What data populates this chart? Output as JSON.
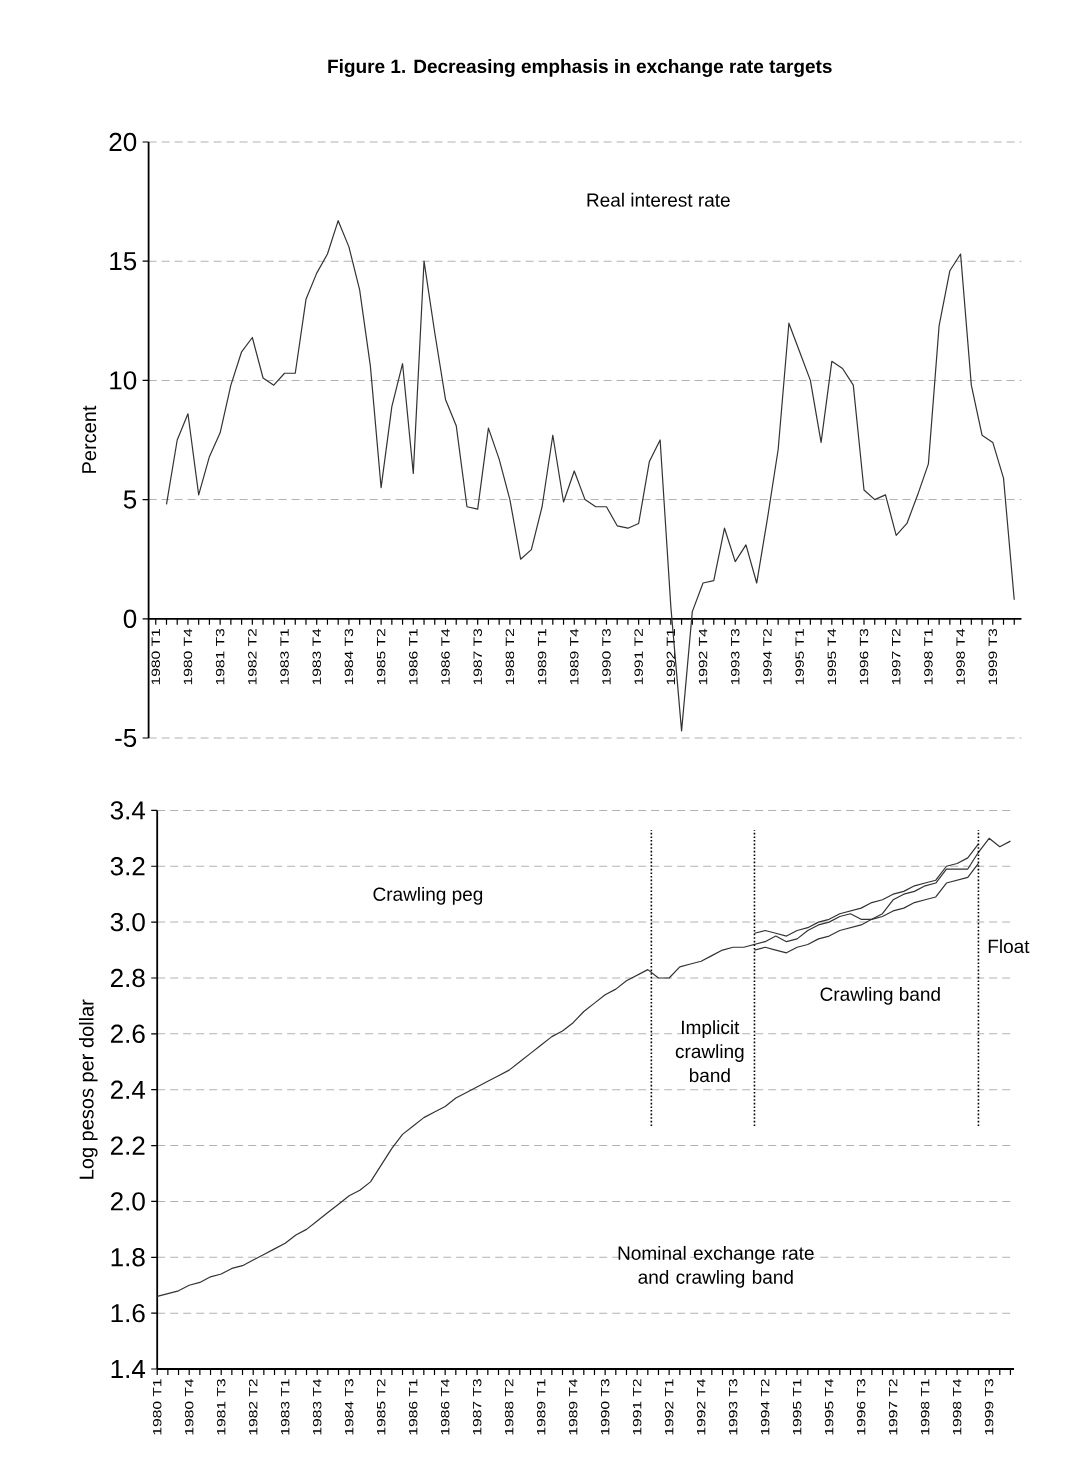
{
  "chart_data": [
    {
      "type": "line",
      "title": "Figure 1. Decreasing emphasis in exchange rate targets",
      "ylabel": "Percent",
      "annotations": [
        "Real interest rate"
      ],
      "x": [
        "1980-04",
        "1980-07",
        "1980-10",
        "1981-01",
        "1981-04",
        "1981-07",
        "1981-10",
        "1982-01",
        "1982-04",
        "1982-07",
        "1982-10",
        "1983-01",
        "1983-04",
        "1983-07",
        "1983-10",
        "1984-01",
        "1984-04",
        "1984-07",
        "1984-10",
        "1985-01",
        "1985-04",
        "1985-07",
        "1985-10",
        "1986-01",
        "1986-04",
        "1986-07",
        "1986-10",
        "1987-01",
        "1987-04",
        "1987-07",
        "1987-10",
        "1988-01",
        "1988-04",
        "1988-07",
        "1988-10",
        "1989-01",
        "1989-04",
        "1989-07",
        "1989-10",
        "1990-01",
        "1990-04",
        "1990-07",
        "1990-10",
        "1991-01",
        "1991-04",
        "1991-07",
        "1991-10",
        "1992-01",
        "1992-04",
        "1992-07",
        "1992-10",
        "1993-01",
        "1993-04",
        "1993-07",
        "1993-10",
        "1994-01",
        "1994-04",
        "1994-07",
        "1994-10",
        "1995-01",
        "1995-04",
        "1995-07",
        "1995-10",
        "1996-01",
        "1996-04",
        "1996-07",
        "1996-10",
        "1997-01",
        "1997-04",
        "1997-07",
        "1997-10",
        "1998-01",
        "1998-04",
        "1998-07",
        "1998-10",
        "1999-01",
        "1999-04",
        "1999-07",
        "1999-10",
        "2000-01"
      ],
      "series": [
        {
          "color": "#333333",
          "values": [
            4.8,
            7.5,
            8.6,
            5.2,
            6.8,
            7.8,
            9.8,
            11.2,
            11.8,
            10.1,
            9.8,
            10.3,
            10.3,
            13.4,
            14.5,
            15.3,
            16.7,
            15.6,
            13.8,
            10.6,
            5.5,
            8.9,
            10.7,
            6.1,
            15.0,
            12.0,
            9.2,
            8.1,
            4.7,
            4.6,
            8.0,
            6.7,
            5.0,
            2.5,
            2.9,
            4.7,
            7.7,
            4.9,
            6.2,
            5.0,
            4.7,
            4.7,
            3.9,
            3.8,
            4.0,
            6.6,
            7.5,
            0.5,
            -4.7,
            0.3,
            1.5,
            1.6,
            3.8,
            2.4,
            3.1,
            1.5,
            4.2,
            7.1,
            12.4,
            11.2,
            10.0,
            7.4,
            10.8,
            10.5,
            9.8,
            5.4,
            5.0,
            5.2,
            3.5,
            4.0,
            5.2,
            6.5,
            12.3,
            14.6,
            15.3,
            9.8,
            7.7,
            7.4,
            5.9,
            0.8
          ]
        }
      ],
      "xlim": [
        "1979-11",
        "2000-03"
      ],
      "xticks": [
        {
          "value": "1980-01",
          "label": "1980 T1"
        },
        {
          "value": "1980-04",
          "label": null
        },
        {
          "value": "1980-07",
          "label": null
        },
        {
          "value": "1980-10",
          "label": "1980 T4"
        },
        {
          "value": "1981-01",
          "label": null
        },
        {
          "value": "1981-04",
          "label": null
        },
        {
          "value": "1981-07",
          "label": "1981 T3"
        },
        {
          "value": "1981-10",
          "label": null
        },
        {
          "value": "1982-01",
          "label": null
        },
        {
          "value": "1982-04",
          "label": "1982 T2"
        },
        {
          "value": "1982-07",
          "label": null
        },
        {
          "value": "1982-10",
          "label": null
        },
        {
          "value": "1983-01",
          "label": "1983 T1"
        },
        {
          "value": "1983-04",
          "label": null
        },
        {
          "value": "1983-07",
          "label": null
        },
        {
          "value": "1983-10",
          "label": "1983 T4"
        },
        {
          "value": "1984-01",
          "label": null
        },
        {
          "value": "1984-04",
          "label": null
        },
        {
          "value": "1984-07",
          "label": "1984 T3"
        },
        {
          "value": "1984-10",
          "label": null
        },
        {
          "value": "1985-01",
          "label": null
        },
        {
          "value": "1985-04",
          "label": "1985 T2"
        },
        {
          "value": "1985-07",
          "label": null
        },
        {
          "value": "1985-10",
          "label": null
        },
        {
          "value": "1986-01",
          "label": "1986 T1"
        },
        {
          "value": "1986-04",
          "label": null
        },
        {
          "value": "1986-07",
          "label": null
        },
        {
          "value": "1986-10",
          "label": "1986 T4"
        },
        {
          "value": "1987-01",
          "label": null
        },
        {
          "value": "1987-04",
          "label": null
        },
        {
          "value": "1987-07",
          "label": "1987 T3"
        },
        {
          "value": "1987-10",
          "label": null
        },
        {
          "value": "1988-01",
          "label": null
        },
        {
          "value": "1988-04",
          "label": "1988 T2"
        },
        {
          "value": "1988-07",
          "label": null
        },
        {
          "value": "1988-10",
          "label": null
        },
        {
          "value": "1989-01",
          "label": "1989 T1"
        },
        {
          "value": "1989-04",
          "label": null
        },
        {
          "value": "1989-07",
          "label": null
        },
        {
          "value": "1989-10",
          "label": "1989 T4"
        },
        {
          "value": "1990-01",
          "label": null
        },
        {
          "value": "1990-04",
          "label": null
        },
        {
          "value": "1990-07",
          "label": "1990 T3"
        },
        {
          "value": "1990-10",
          "label": null
        },
        {
          "value": "1991-01",
          "label": null
        },
        {
          "value": "1991-04",
          "label": "1991 T2"
        },
        {
          "value": "1991-07",
          "label": null
        },
        {
          "value": "1991-10",
          "label": null
        },
        {
          "value": "1992-01",
          "label": "1992 T1"
        },
        {
          "value": "1992-04",
          "label": null
        },
        {
          "value": "1992-07",
          "label": null
        },
        {
          "value": "1992-10",
          "label": "1992 T4"
        },
        {
          "value": "1993-01",
          "label": null
        },
        {
          "value": "1993-04",
          "label": null
        },
        {
          "value": "1993-07",
          "label": "1993 T3"
        },
        {
          "value": "1993-10",
          "label": null
        },
        {
          "value": "1994-01",
          "label": null
        },
        {
          "value": "1994-04",
          "label": "1994 T2"
        },
        {
          "value": "1994-07",
          "label": null
        },
        {
          "value": "1994-10",
          "label": null
        },
        {
          "value": "1995-01",
          "label": "1995 T1"
        },
        {
          "value": "1995-04",
          "label": null
        },
        {
          "value": "1995-07",
          "label": null
        },
        {
          "value": "1995-10",
          "label": "1995 T4"
        },
        {
          "value": "1996-01",
          "label": null
        },
        {
          "value": "1996-04",
          "label": null
        },
        {
          "value": "1996-07",
          "label": "1996 T3"
        },
        {
          "value": "1996-10",
          "label": null
        },
        {
          "value": "1997-01",
          "label": null
        },
        {
          "value": "1997-04",
          "label": "1997 T2"
        },
        {
          "value": "1997-07",
          "label": null
        },
        {
          "value": "1997-10",
          "label": null
        },
        {
          "value": "1998-01",
          "label": "1998 T1"
        },
        {
          "value": "1998-04",
          "label": null
        },
        {
          "value": "1998-07",
          "label": null
        },
        {
          "value": "1998-10",
          "label": "1998 T4"
        },
        {
          "value": "1999-01",
          "label": null
        },
        {
          "value": "1999-04",
          "label": null
        },
        {
          "value": "1999-07",
          "label": "1999 T3"
        },
        {
          "value": "1999-10",
          "label": null
        },
        {
          "value": "2000-01",
          "label": null
        }
      ],
      "ylim": [
        -5,
        20
      ],
      "yticks": [
        -5,
        0,
        5,
        10,
        15,
        20
      ],
      "grid": "y"
    },
    {
      "type": "line",
      "ylabel": "Log pesos per dollar",
      "annotations": [
        "Crawling peg",
        "Implicit crawling band",
        "Crawling band",
        "Float",
        "Nominal exchange rate and crawling band"
      ],
      "x": [
        "1980-01",
        "1980-04",
        "1980-07",
        "1980-10",
        "1981-01",
        "1981-04",
        "1981-07",
        "1981-10",
        "1982-01",
        "1982-04",
        "1982-07",
        "1982-10",
        "1983-01",
        "1983-04",
        "1983-07",
        "1983-10",
        "1984-01",
        "1984-04",
        "1984-07",
        "1984-10",
        "1985-01",
        "1985-04",
        "1985-07",
        "1985-10",
        "1986-01",
        "1986-04",
        "1986-07",
        "1986-10",
        "1987-01",
        "1987-04",
        "1987-07",
        "1987-10",
        "1988-01",
        "1988-04",
        "1988-07",
        "1988-10",
        "1989-01",
        "1989-04",
        "1989-07",
        "1989-10",
        "1990-01",
        "1990-04",
        "1990-07",
        "1990-10",
        "1991-01",
        "1991-04",
        "1991-07",
        "1991-10",
        "1992-01",
        "1992-04",
        "1992-07",
        "1992-10",
        "1993-01",
        "1993-04",
        "1993-07",
        "1993-10",
        "1994-01",
        "1994-04",
        "1994-07",
        "1994-10",
        "1995-01",
        "1995-04",
        "1995-07",
        "1995-10",
        "1996-01",
        "1996-04",
        "1996-07",
        "1996-10",
        "1997-01",
        "1997-04",
        "1997-07",
        "1997-10",
        "1998-01",
        "1998-04",
        "1998-07",
        "1998-10",
        "1999-01",
        "1999-04",
        "1999-07",
        "1999-10",
        "2000-01"
      ],
      "series": [
        {
          "color": "#333333",
          "values": [
            1.66,
            1.67,
            1.68,
            1.7,
            1.71,
            1.73,
            1.74,
            1.76,
            1.77,
            1.79,
            1.81,
            1.83,
            1.85,
            1.88,
            1.9,
            1.93,
            1.96,
            1.99,
            2.02,
            2.04,
            2.07,
            2.13,
            2.19,
            2.24,
            2.27,
            2.3,
            2.32,
            2.34,
            2.37,
            2.39,
            2.41,
            2.43,
            2.45,
            2.47,
            2.5,
            2.53,
            2.56,
            2.59,
            2.61,
            2.64,
            2.68,
            2.71,
            2.74,
            2.76,
            2.79,
            2.81,
            2.83,
            2.8,
            2.8,
            2.84,
            2.85,
            2.86,
            2.88,
            2.9,
            2.91,
            2.91,
            2.92,
            2.93,
            2.95,
            2.93,
            2.94,
            2.97,
            2.99,
            3.0,
            3.02,
            3.03,
            3.01,
            3.01,
            3.03,
            3.08,
            3.1,
            3.11,
            3.13,
            3.14,
            3.19,
            3.19,
            3.19,
            3.25,
            3.3,
            3.27,
            3.29
          ]
        },
        {
          "color": "#333333",
          "x": [
            "1994-01",
            "1994-04",
            "1994-07",
            "1994-10",
            "1995-01",
            "1995-04",
            "1995-07",
            "1995-10",
            "1996-01",
            "1996-04",
            "1996-07",
            "1996-10",
            "1997-01",
            "1997-04",
            "1997-07",
            "1997-10",
            "1998-01",
            "1998-04",
            "1998-07",
            "1998-10",
            "1999-01",
            "1999-04"
          ],
          "values": [
            2.96,
            2.97,
            2.96,
            2.95,
            2.97,
            2.98,
            3.0,
            3.01,
            3.03,
            3.04,
            3.05,
            3.07,
            3.08,
            3.1,
            3.11,
            3.13,
            3.14,
            3.15,
            3.2,
            3.21,
            3.23,
            3.28
          ]
        },
        {
          "color": "#333333",
          "x": [
            "1994-01",
            "1994-04",
            "1994-07",
            "1994-10",
            "1995-01",
            "1995-04",
            "1995-07",
            "1995-10",
            "1996-01",
            "1996-04",
            "1996-07",
            "1996-10",
            "1997-01",
            "1997-04",
            "1997-07",
            "1997-10",
            "1998-01",
            "1998-04",
            "1998-07",
            "1998-10",
            "1999-01",
            "1999-04"
          ],
          "values": [
            2.9,
            2.91,
            2.9,
            2.89,
            2.91,
            2.92,
            2.94,
            2.95,
            2.97,
            2.98,
            2.99,
            3.01,
            3.02,
            3.04,
            3.05,
            3.07,
            3.08,
            3.09,
            3.14,
            3.15,
            3.16,
            3.21
          ]
        }
      ],
      "xlim": [
        "1980-01",
        "2000-02"
      ],
      "xticks": [
        {
          "value": "1980-01",
          "label": "1980 T1"
        },
        {
          "value": "1980-04",
          "label": null
        },
        {
          "value": "1980-07",
          "label": null
        },
        {
          "value": "1980-10",
          "label": "1980 T4"
        },
        {
          "value": "1981-01",
          "label": null
        },
        {
          "value": "1981-04",
          "label": null
        },
        {
          "value": "1981-07",
          "label": "1981 T3"
        },
        {
          "value": "1981-10",
          "label": null
        },
        {
          "value": "1982-01",
          "label": null
        },
        {
          "value": "1982-04",
          "label": "1982 T2"
        },
        {
          "value": "1982-07",
          "label": null
        },
        {
          "value": "1982-10",
          "label": null
        },
        {
          "value": "1983-01",
          "label": "1983 T1"
        },
        {
          "value": "1983-04",
          "label": null
        },
        {
          "value": "1983-07",
          "label": null
        },
        {
          "value": "1983-10",
          "label": "1983 T4"
        },
        {
          "value": "1984-01",
          "label": null
        },
        {
          "value": "1984-04",
          "label": null
        },
        {
          "value": "1984-07",
          "label": "1984 T3"
        },
        {
          "value": "1984-10",
          "label": null
        },
        {
          "value": "1985-01",
          "label": null
        },
        {
          "value": "1985-04",
          "label": "1985 T2"
        },
        {
          "value": "1985-07",
          "label": null
        },
        {
          "value": "1985-10",
          "label": null
        },
        {
          "value": "1986-01",
          "label": "1986 T1"
        },
        {
          "value": "1986-04",
          "label": null
        },
        {
          "value": "1986-07",
          "label": null
        },
        {
          "value": "1986-10",
          "label": "1986 T4"
        },
        {
          "value": "1987-01",
          "label": null
        },
        {
          "value": "1987-04",
          "label": null
        },
        {
          "value": "1987-07",
          "label": "1987 T3"
        },
        {
          "value": "1987-10",
          "label": null
        },
        {
          "value": "1988-01",
          "label": null
        },
        {
          "value": "1988-04",
          "label": "1988 T2"
        },
        {
          "value": "1988-07",
          "label": null
        },
        {
          "value": "1988-10",
          "label": null
        },
        {
          "value": "1989-01",
          "label": "1989 T1"
        },
        {
          "value": "1989-04",
          "label": null
        },
        {
          "value": "1989-07",
          "label": null
        },
        {
          "value": "1989-10",
          "label": "1989 T4"
        },
        {
          "value": "1990-01",
          "label": null
        },
        {
          "value": "1990-04",
          "label": null
        },
        {
          "value": "1990-07",
          "label": "1990 T3"
        },
        {
          "value": "1990-10",
          "label": null
        },
        {
          "value": "1991-01",
          "label": null
        },
        {
          "value": "1991-04",
          "label": "1991 T2"
        },
        {
          "value": "1991-07",
          "label": null
        },
        {
          "value": "1991-10",
          "label": null
        },
        {
          "value": "1992-01",
          "label": "1992 T1"
        },
        {
          "value": "1992-04",
          "label": null
        },
        {
          "value": "1992-07",
          "label": null
        },
        {
          "value": "1992-10",
          "label": "1992 T4"
        },
        {
          "value": "1993-01",
          "label": null
        },
        {
          "value": "1993-04",
          "label": null
        },
        {
          "value": "1993-07",
          "label": "1993 T3"
        },
        {
          "value": "1993-10",
          "label": null
        },
        {
          "value": "1994-01",
          "label": null
        },
        {
          "value": "1994-04",
          "label": "1994 T2"
        },
        {
          "value": "1994-07",
          "label": null
        },
        {
          "value": "1994-10",
          "label": null
        },
        {
          "value": "1995-01",
          "label": "1995 T1"
        },
        {
          "value": "1995-04",
          "label": null
        },
        {
          "value": "1995-07",
          "label": null
        },
        {
          "value": "1995-10",
          "label": "1995 T4"
        },
        {
          "value": "1996-01",
          "label": null
        },
        {
          "value": "1996-04",
          "label": null
        },
        {
          "value": "1996-07",
          "label": "1996 T3"
        },
        {
          "value": "1996-10",
          "label": null
        },
        {
          "value": "1997-01",
          "label": null
        },
        {
          "value": "1997-04",
          "label": "1997 T2"
        },
        {
          "value": "1997-07",
          "label": null
        },
        {
          "value": "1997-10",
          "label": null
        },
        {
          "value": "1998-01",
          "label": "1998 T1"
        },
        {
          "value": "1998-04",
          "label": null
        },
        {
          "value": "1998-07",
          "label": null
        },
        {
          "value": "1998-10",
          "label": "1998 T4"
        },
        {
          "value": "1999-01",
          "label": null
        },
        {
          "value": "1999-04",
          "label": null
        },
        {
          "value": "1999-07",
          "label": "1999 T3"
        },
        {
          "value": "1999-10",
          "label": null
        },
        {
          "value": "2000-01",
          "label": null
        }
      ],
      "ylim": [
        1.4,
        3.4
      ],
      "yticks": [
        1.4,
        1.6,
        1.8,
        {
          "value": 2.0,
          "label": "2.0"
        },
        2.2,
        2.4,
        2.6,
        2.8,
        {
          "value": 3.0,
          "label": "3.0"
        },
        3.2,
        3.4
      ],
      "grid": "y",
      "ref_lines": [
        {
          "axis": "x",
          "value": "1991-08",
          "line_style": "dotted",
          "color": "#000000"
        },
        {
          "axis": "x",
          "value": "1994-01",
          "line_style": "dotted",
          "color": "#000000"
        },
        {
          "axis": "x",
          "value": "1999-04",
          "line_style": "dotted",
          "color": "#000000"
        }
      ]
    }
  ]
}
